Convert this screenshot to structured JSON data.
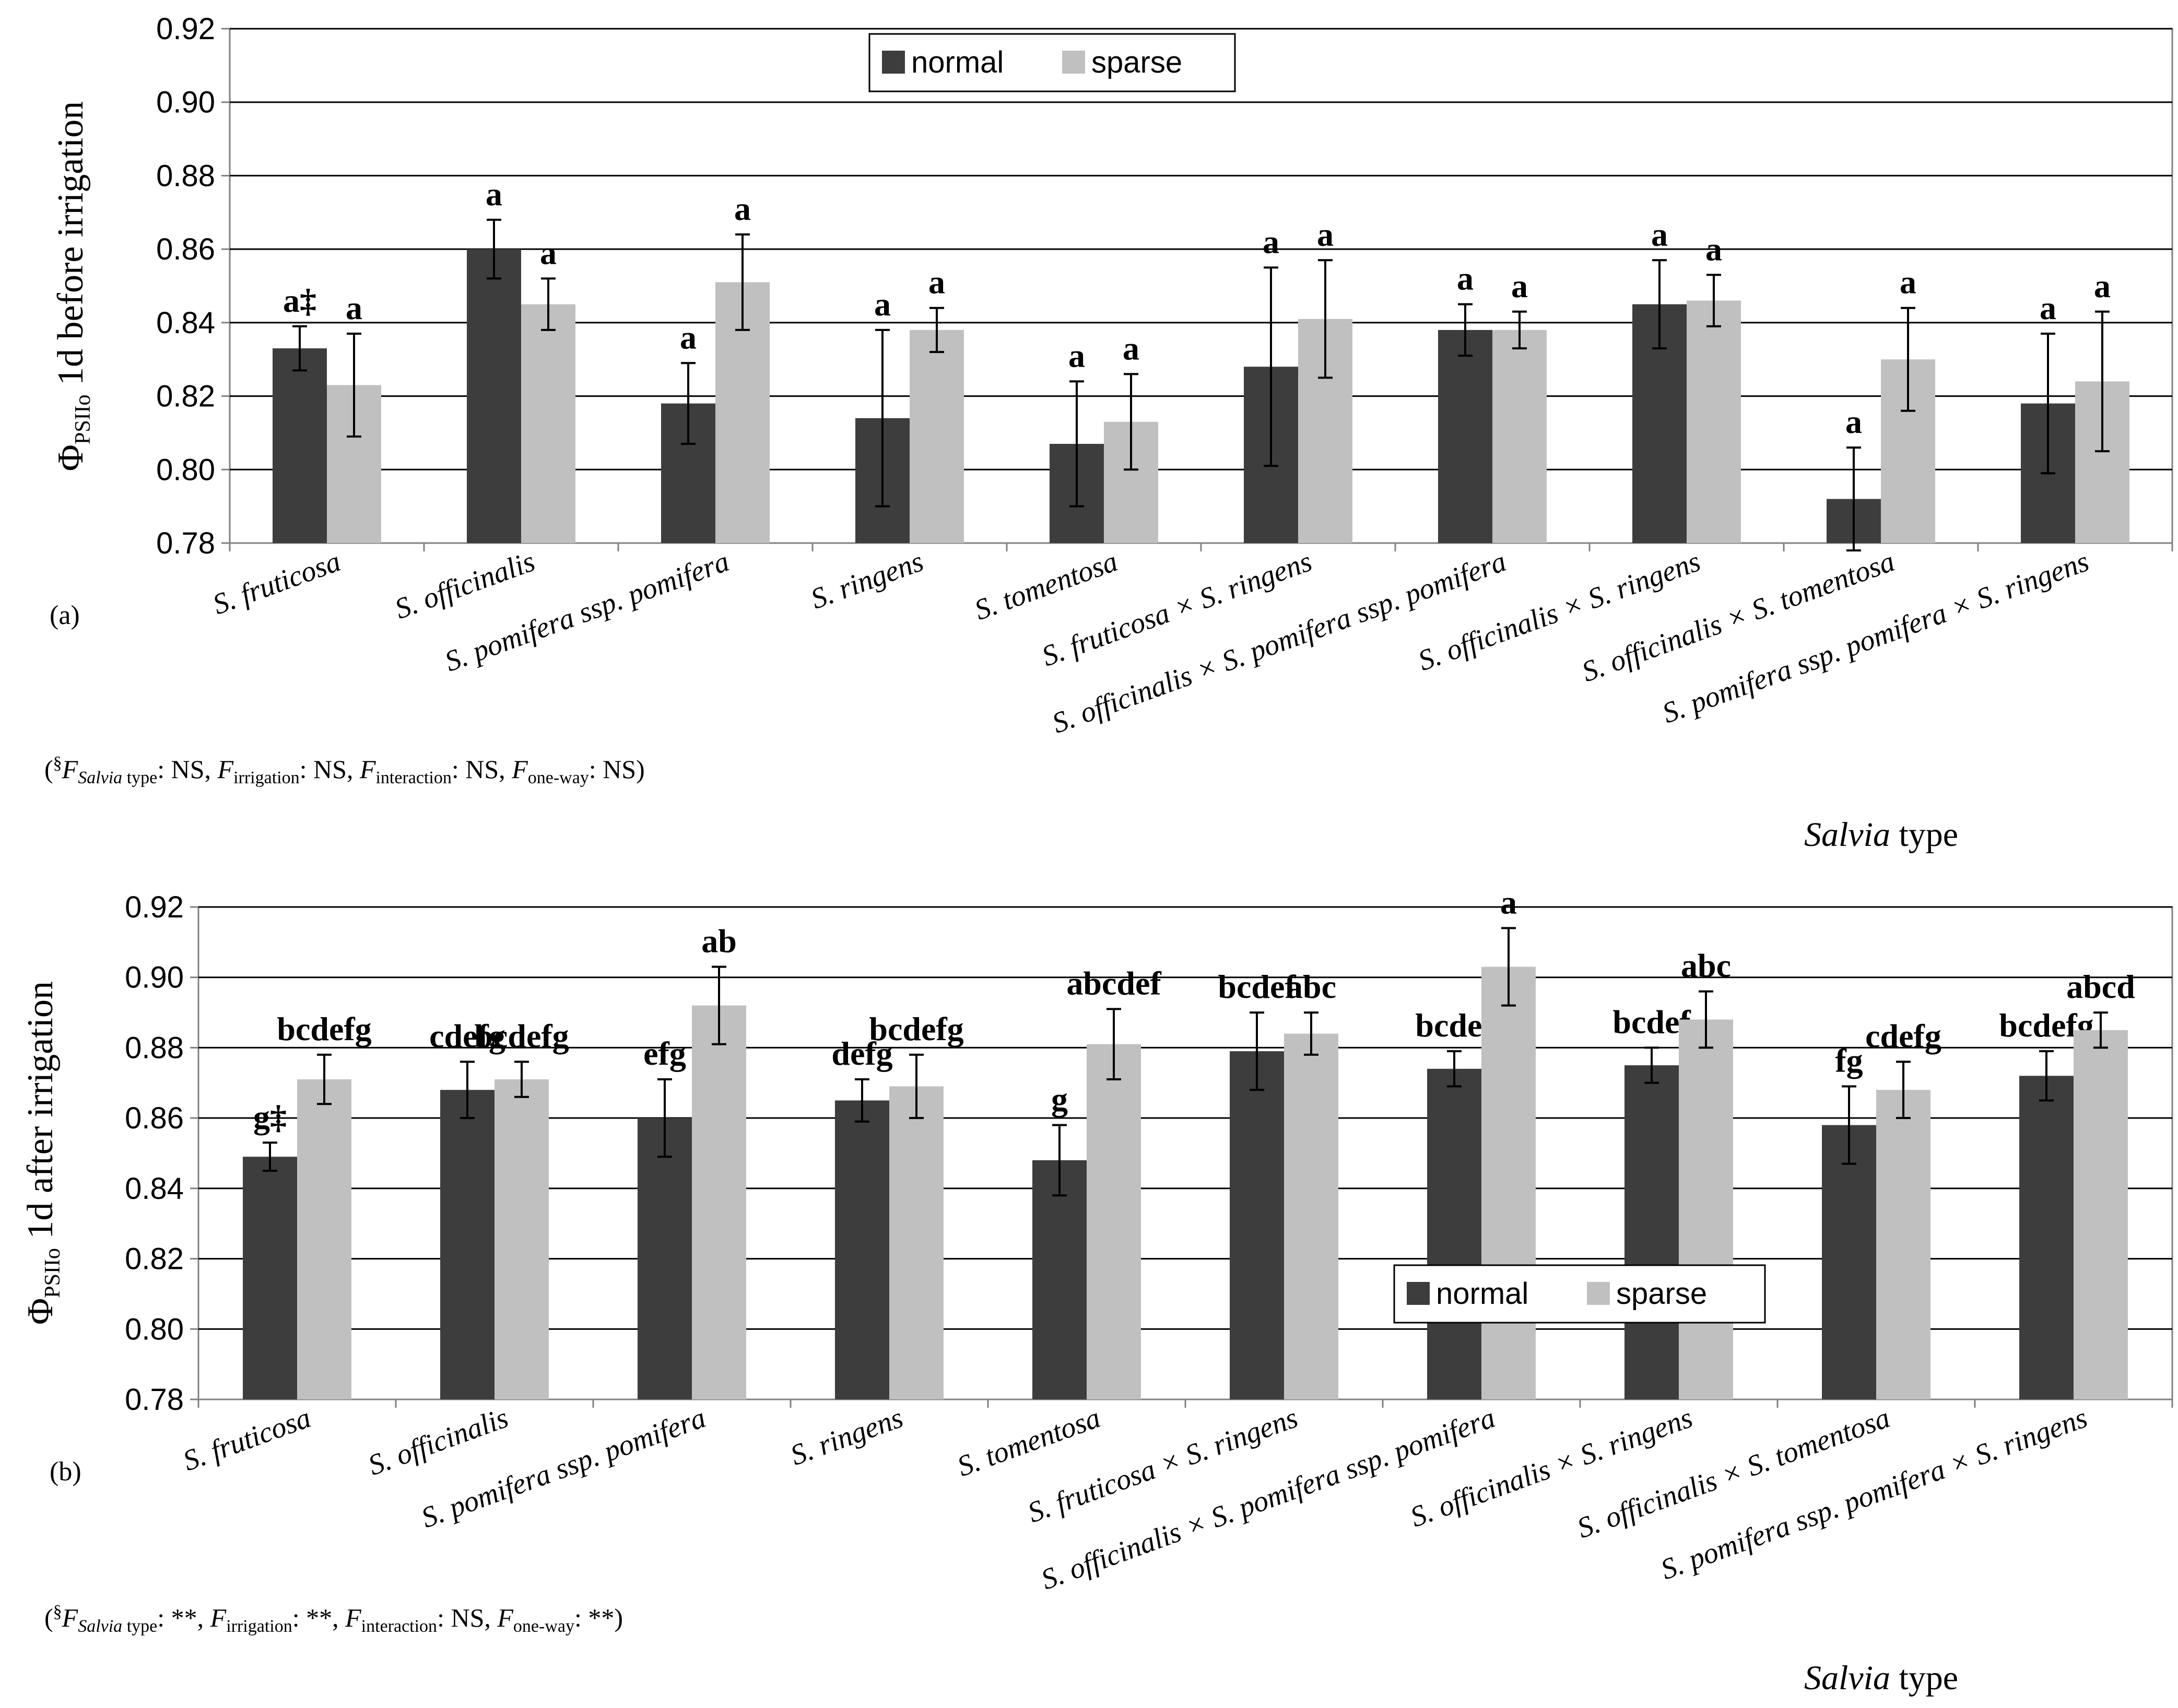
{
  "figure": {
    "colors": {
      "normal": "#3d3d3d",
      "sparse": "#c0c0c0",
      "grid": "#000000",
      "axis": "#808080"
    }
  },
  "chart_data": [
    {
      "type": "bar",
      "panel_label": "(a)",
      "ylabel_main": "Φ",
      "ylabel_sub": "PSIIo",
      "ylabel_rest": " 1d before irrigation",
      "xlabel_italic": "Salvia",
      "xlabel_rest": " type",
      "ylim": [
        0.78,
        0.92
      ],
      "yticks": [
        0.78,
        0.8,
        0.82,
        0.84,
        0.86,
        0.88,
        0.9,
        0.92
      ],
      "ytick_labels": [
        "0.78",
        "0.80",
        "0.82",
        "0.84",
        "0.86",
        "0.88",
        "0.90",
        "0.92"
      ],
      "grid": true,
      "legend_position": "top-center",
      "categories": [
        "S. fruticosa",
        "S. officinalis",
        "S. pomifera ssp. pomifera",
        "S. ringens",
        "S. tomentosa",
        "S. fruticosa × S. ringens",
        "S. officinalis × S. pomifera ssp. pomifera",
        "S. officinalis × S. ringens",
        "S. officinalis × S. tomentosa",
        "S. pomifera ssp. pomifera × S. ringens"
      ],
      "series": [
        {
          "name": "normal",
          "values": [
            0.833,
            0.86,
            0.818,
            0.814,
            0.807,
            0.828,
            0.838,
            0.845,
            0.792,
            0.818
          ],
          "errors": [
            0.006,
            0.008,
            0.011,
            0.024,
            0.017,
            0.027,
            0.007,
            0.012,
            0.014,
            0.019
          ],
          "labels": [
            "a‡",
            "a",
            "a",
            "a",
            "a",
            "a",
            "a",
            "a",
            "a",
            "a"
          ]
        },
        {
          "name": "sparse",
          "values": [
            0.823,
            0.845,
            0.851,
            0.838,
            0.813,
            0.841,
            0.838,
            0.846,
            0.83,
            0.824
          ],
          "errors": [
            0.014,
            0.007,
            0.013,
            0.006,
            0.013,
            0.016,
            0.005,
            0.007,
            0.014,
            0.019
          ],
          "labels": [
            "a",
            "a",
            "a",
            "a",
            "a",
            "a",
            "a",
            "a",
            "a",
            "a"
          ]
        }
      ],
      "stats_text": {
        "open": "(",
        "sym": "§",
        "f1_sub": "Salvia",
        "f1_sub2": " type",
        "f1_val": ": NS, ",
        "f2_sub": "irrigation",
        "f2_val": ": NS, ",
        "f3_sub": "interaction",
        "f3_val": ": NS, ",
        "f4_sub": "one-way",
        "f4_val": ": NS)",
        "F": "F"
      }
    },
    {
      "type": "bar",
      "panel_label": "(b)",
      "ylabel_main": "Φ",
      "ylabel_sub": "PSIIo",
      "ylabel_rest": " 1d after irrigation",
      "xlabel_italic": "Salvia",
      "xlabel_rest": " type",
      "ylim": [
        0.78,
        0.92
      ],
      "yticks": [
        0.78,
        0.8,
        0.82,
        0.84,
        0.86,
        0.88,
        0.9,
        0.92
      ],
      "ytick_labels": [
        "0.78",
        "0.80",
        "0.82",
        "0.84",
        "0.86",
        "0.88",
        "0.90",
        "0.92"
      ],
      "grid": true,
      "legend_position": "lower-right",
      "categories": [
        "S. fruticosa",
        "S. officinalis",
        "S. pomifera ssp. pomifera",
        "S. ringens",
        "S. tomentosa",
        "S. fruticosa × S. ringens",
        "S. officinalis × S. pomifera ssp. pomifera",
        "S. officinalis × S. ringens",
        "S. officinalis × S. tomentosa",
        "S. pomifera ssp. pomifera × S. ringens"
      ],
      "series": [
        {
          "name": "normal",
          "values": [
            0.849,
            0.868,
            0.86,
            0.865,
            0.848,
            0.879,
            0.874,
            0.875,
            0.858,
            0.872
          ],
          "errors": [
            0.004,
            0.008,
            0.011,
            0.006,
            0.01,
            0.011,
            0.005,
            0.005,
            0.011,
            0.007
          ],
          "labels": [
            "g‡",
            "cdefg",
            "efg",
            "defg",
            "g",
            "bcdef",
            "bcdef",
            "bcdef",
            "fg",
            "bcdefg"
          ]
        },
        {
          "name": "sparse",
          "values": [
            0.871,
            0.871,
            0.892,
            0.869,
            0.881,
            0.884,
            0.903,
            0.888,
            0.868,
            0.885
          ],
          "errors": [
            0.007,
            0.005,
            0.011,
            0.009,
            0.01,
            0.006,
            0.011,
            0.008,
            0.008,
            0.005
          ],
          "labels": [
            "bcdefg",
            "bcdefg",
            "ab",
            "bcdefg",
            "abcdef",
            "abc",
            "a",
            "abc",
            "cdefg",
            "abcd"
          ]
        }
      ],
      "stats_text": {
        "open": "(",
        "sym": "§",
        "f1_sub": "Salvia",
        "f1_sub2": " type",
        "f1_val": ": **, ",
        "f2_sub": "irrigation",
        "f2_val": ": **, ",
        "f3_sub": "interaction",
        "f3_val": ": NS, ",
        "f4_sub": "one-way",
        "f4_val": ": **)",
        "F": "F"
      }
    }
  ]
}
